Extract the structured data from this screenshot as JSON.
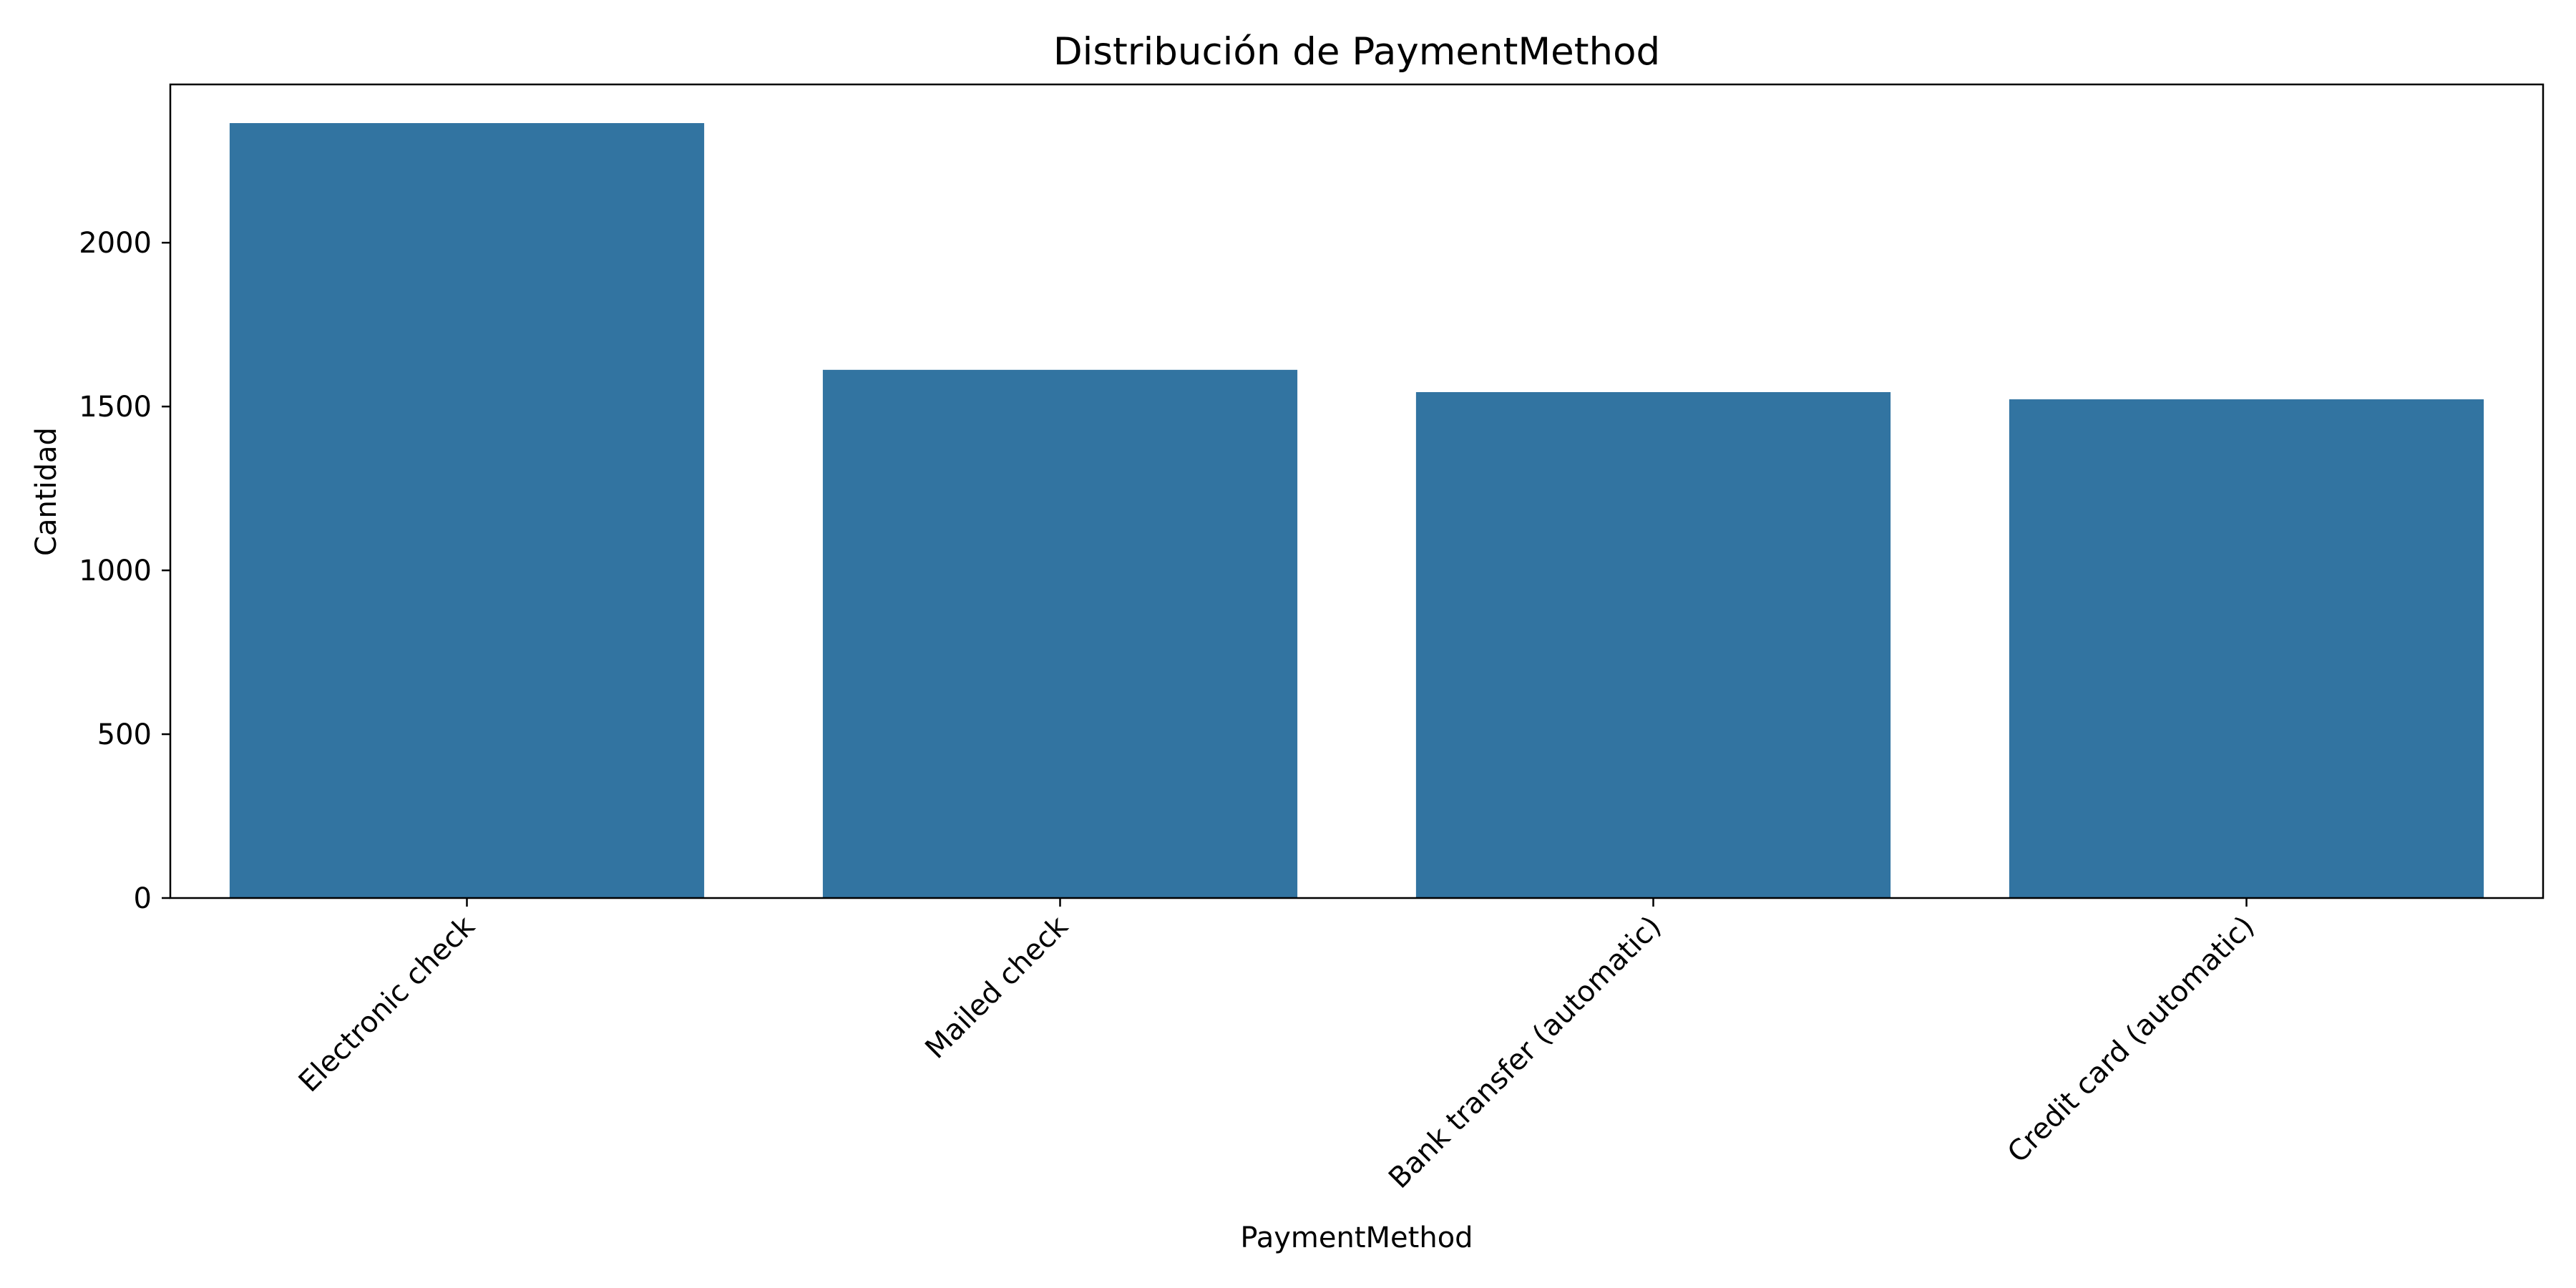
{
  "chart_data": {
    "type": "bar",
    "title": "Distribución de PaymentMethod",
    "xlabel": "PaymentMethod",
    "ylabel": "Cantidad",
    "categories": [
      "Electronic check",
      "Mailed check",
      "Bank transfer (automatic)",
      "Credit card (automatic)"
    ],
    "values": [
      2365,
      1612,
      1544,
      1522
    ],
    "ylim": [
      0,
      2483
    ],
    "yticks": [
      0,
      500,
      1000,
      1500,
      2000
    ],
    "ytick_labels": [
      "0",
      "500",
      "1000",
      "1500",
      "2000"
    ],
    "grid": false,
    "legend": "none",
    "bar_color": "#3274a1",
    "xtick_rotation": 45
  }
}
